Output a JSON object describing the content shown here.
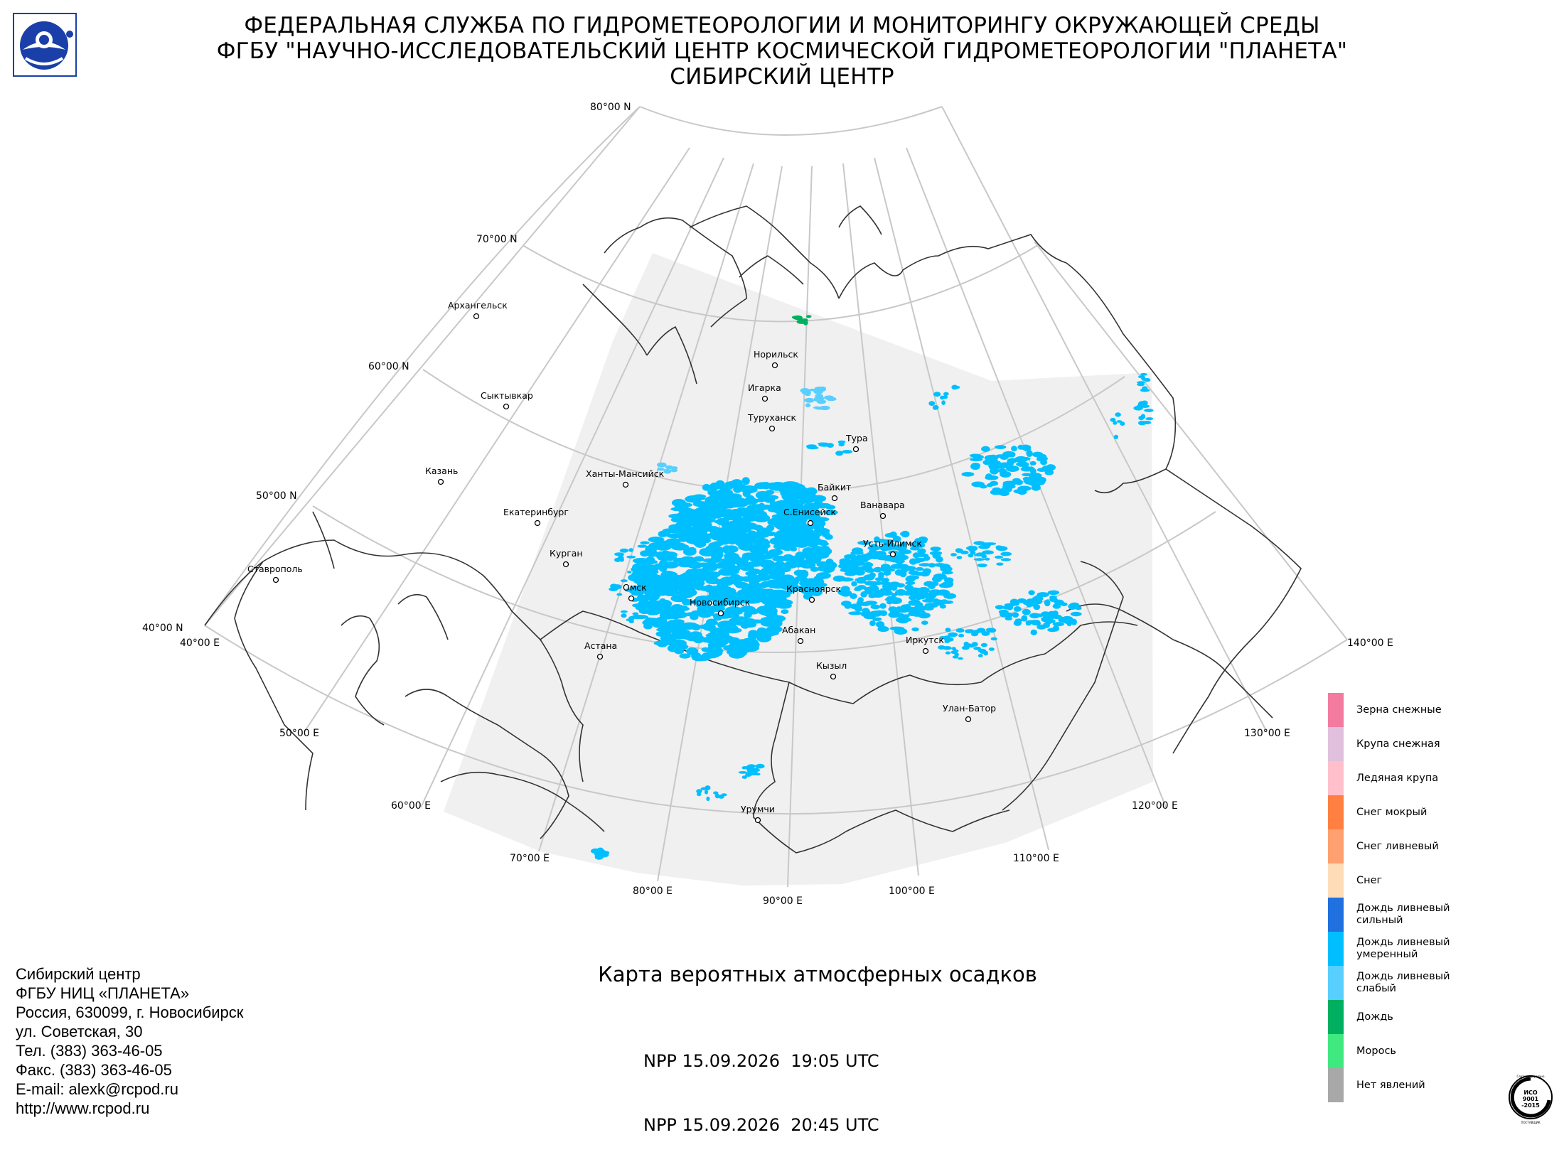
{
  "header": {
    "line1": "ФЕДЕРАЛЬНАЯ СЛУЖБА ПО ГИДРОМЕТЕОРОЛОГИИ И МОНИТОРИНГУ ОКРУЖАЮЩЕЙ СРЕДЫ",
    "line2": "ФГБУ \"НАУЧНО-ИССЛЕДОВАТЕЛЬСКИЙ ЦЕНТР КОСМИЧЕСКОЙ ГИДРОМЕТЕОРОЛОГИИ \"ПЛАНЕТА\"",
    "line3": "СИБИРСКИЙ ЦЕНТР"
  },
  "map": {
    "lat_labels": [
      "80°00 N",
      "70°00 N",
      "60°00 N",
      "50°00 N",
      "40°00 N"
    ],
    "lon_labels": [
      "40°00 E",
      "50°00 E",
      "60°00 E",
      "70°00 E",
      "80°00 E",
      "90°00 E",
      "100°00 E",
      "110°00 E",
      "120°00 E",
      "130°00 E",
      "140°00 E"
    ],
    "cities": [
      {
        "name": "Архангельск"
      },
      {
        "name": "Сыктывкар"
      },
      {
        "name": "Казань"
      },
      {
        "name": "Екатеринбург"
      },
      {
        "name": "Ставрополь"
      },
      {
        "name": "Курган"
      },
      {
        "name": "Ханты-Мансийск"
      },
      {
        "name": "Омск"
      },
      {
        "name": "Астана"
      },
      {
        "name": "Новосибирск"
      },
      {
        "name": "Норильск"
      },
      {
        "name": "Игарка"
      },
      {
        "name": "Туруханск"
      },
      {
        "name": "Тура"
      },
      {
        "name": "Байкит"
      },
      {
        "name": "Ванавара"
      },
      {
        "name": "С.Енисейск"
      },
      {
        "name": "Усть-Илимск"
      },
      {
        "name": "Красноярск"
      },
      {
        "name": "Абакан"
      },
      {
        "name": "Кызыл"
      },
      {
        "name": "Иркутск"
      },
      {
        "name": "Улан-Батор"
      },
      {
        "name": "Урумчи"
      }
    ],
    "colors": {
      "land": "#f0f0f0",
      "grid": "#c8c8c8",
      "coast": "#333333",
      "rain_shower_moderate": "#00bfff",
      "rain_shower_light": "#58cfff",
      "rain": "#00b060"
    }
  },
  "footer": {
    "lines": [
      "Сибирский центр",
      "ФГБУ НИЦ «ПЛАНЕТА»",
      "Россия, 630099, г. Новосибирск",
      "ул. Советская, 30",
      "Тел. (383) 363-46-05",
      "Факс. (383) 363-46-05",
      "E-mail: alexk@rcpod.ru",
      "http://www.rcpod.ru"
    ]
  },
  "map_title": "Карта вероятных атмосферных осадков",
  "passes": [
    {
      "sat": "NPP",
      "date": "15.09.2026",
      "time": "19:05 UTC"
    },
    {
      "sat": "NPP",
      "date": "15.09.2026",
      "time": "20:45 UTC"
    }
  ],
  "legend": [
    {
      "label": "Зерна снежные",
      "color": "#f47ba0"
    },
    {
      "label": "Крупа снежная",
      "color": "#e0c0dc"
    },
    {
      "label": "Ледяная крупа",
      "color": "#ffc0cc"
    },
    {
      "label": "Снег мокрый",
      "color": "#ff8040"
    },
    {
      "label": "Снег ливневый",
      "color": "#ffa070"
    },
    {
      "label": "Снег",
      "color": "#ffdcb8"
    },
    {
      "label": "Дождь ливневый\nсильный",
      "color": "#2070e0"
    },
    {
      "label": "Дождь ливневый\nумеренный",
      "color": "#00bfff"
    },
    {
      "label": "Дождь ливневый\nслабый",
      "color": "#58cfff"
    },
    {
      "label": "Дождь",
      "color": "#00b060"
    },
    {
      "label": "Морось",
      "color": "#40e880"
    },
    {
      "label": "Нет явлений",
      "color": "#a8a8a8"
    }
  ],
  "iso_badge": {
    "top": "Сертифицировано",
    "mid1": "ИСО",
    "mid2": "9001",
    "mid3": "-2015",
    "bottom": "ПОСТАВЩИК"
  }
}
